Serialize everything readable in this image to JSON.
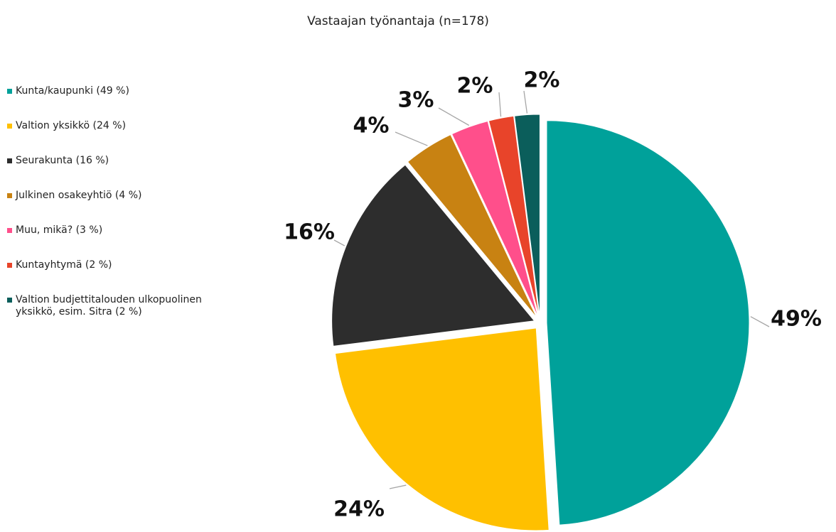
{
  "chart_data": {
    "type": "pie",
    "title": "Vastaajan työnantaja (n=178)",
    "categories": [
      "Kunta/kaupunki (49 %)",
      "Valtion yksikkö (24 %)",
      "Seurakunta (16 %)",
      "Julkinen osakeyhtiö (4 %)",
      "Muu, mikä? (3 %)",
      "Kuntayhtymä (2 %)",
      "Valtion budjettitalouden ulkopuolinen yksikkö, esim. Sitra (2 %)"
    ],
    "values": [
      49,
      24,
      16,
      4,
      3,
      2,
      2
    ],
    "value_labels": [
      "49%",
      "24%",
      "16%",
      "4%",
      "3%",
      "2%",
      "2%"
    ],
    "colors": [
      "#00a19a",
      "#ffc000",
      "#2d2d2d",
      "#c88212",
      "#ff4f8b",
      "#e8442a",
      "#0b5e5b"
    ],
    "legend": "left"
  }
}
